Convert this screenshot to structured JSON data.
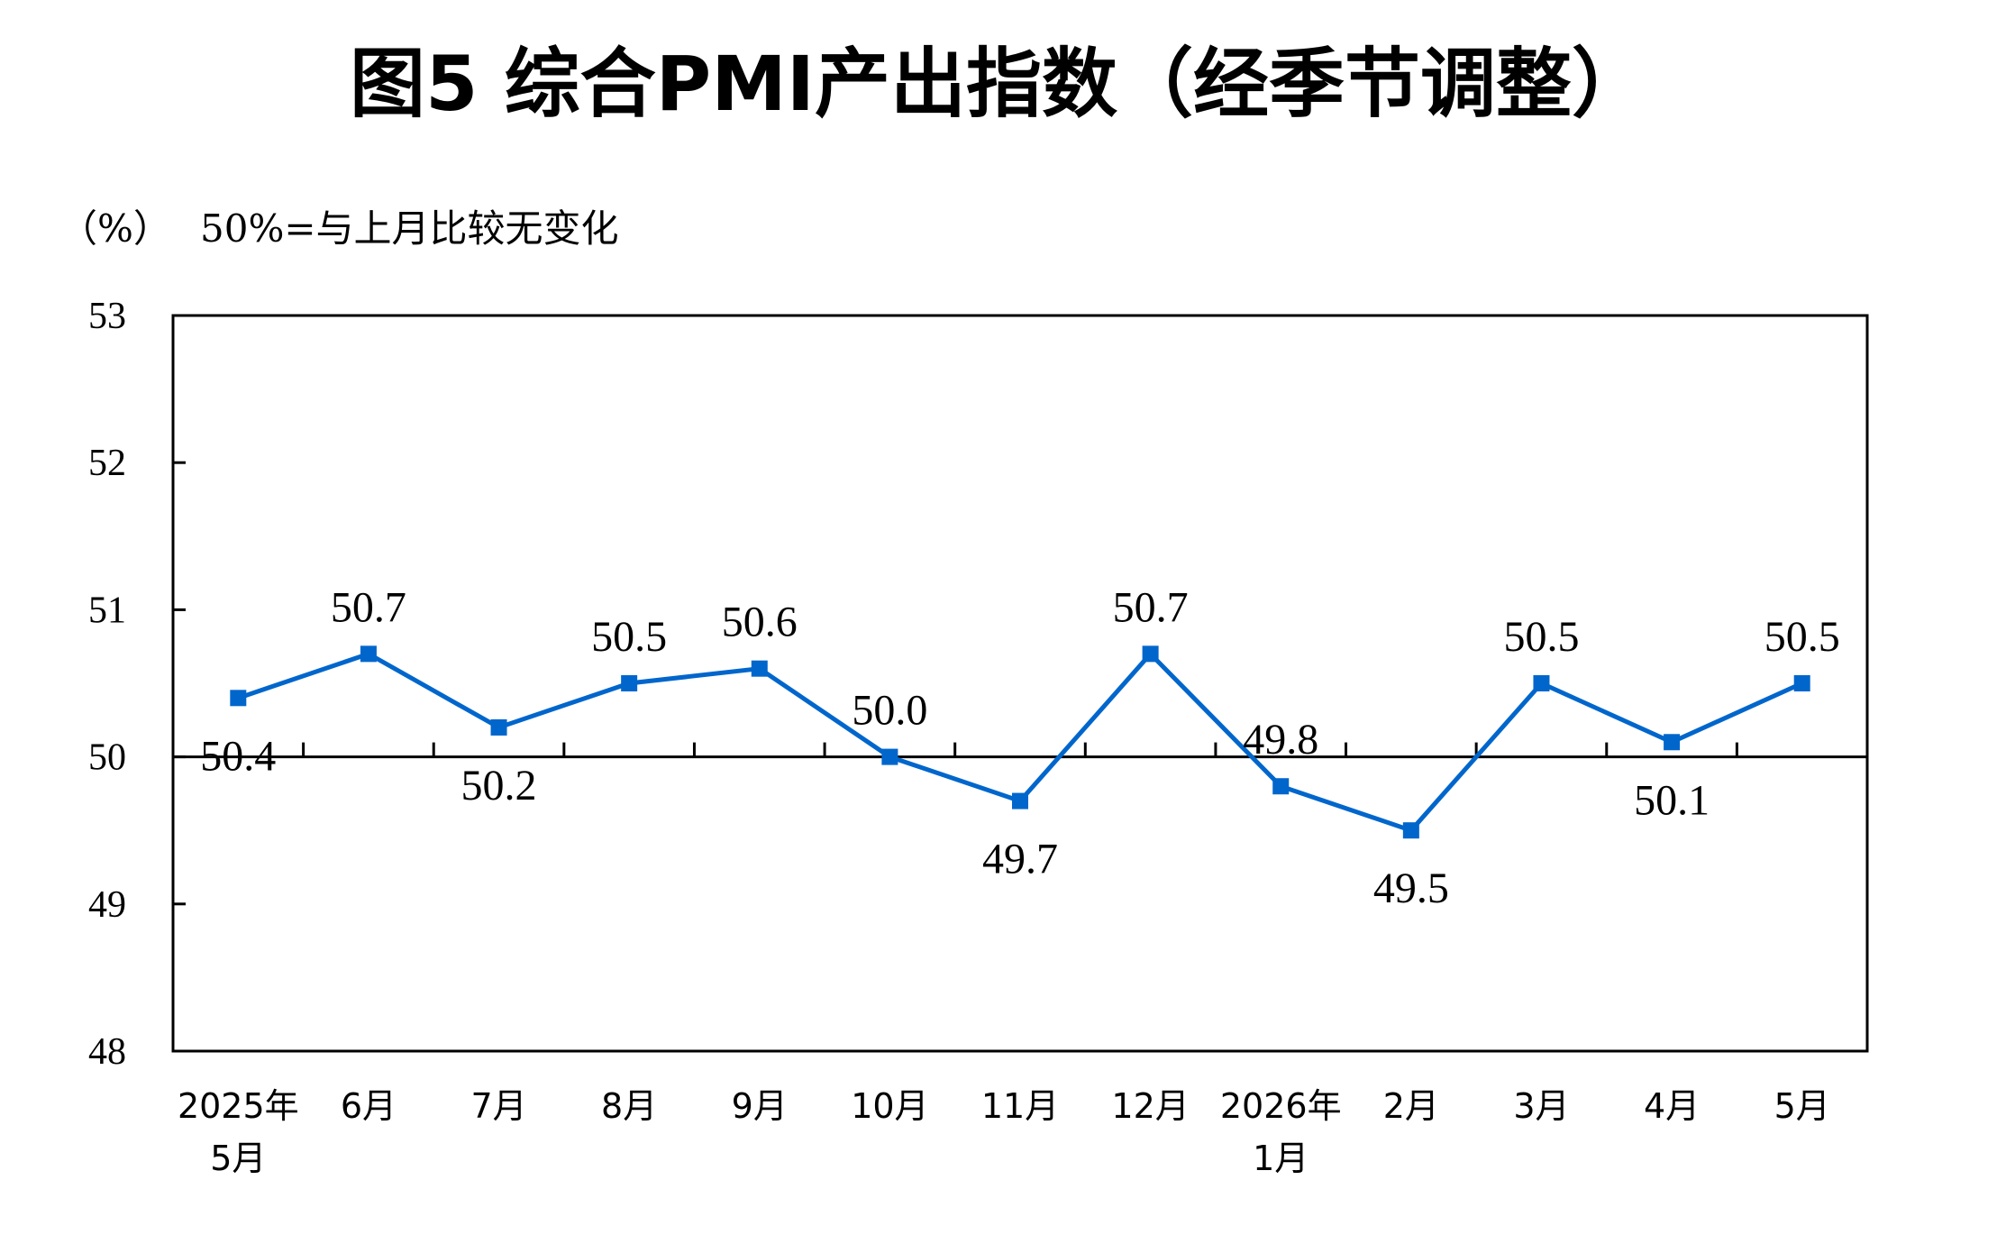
{
  "chart_data": {
    "type": "line",
    "title": "图5 综合PMI产出指数（经季节调整）",
    "unit_label": "（%）",
    "note": "50%=与上月比较无变化",
    "categories": [
      [
        "2025年",
        "5月"
      ],
      [
        "6月"
      ],
      [
        "7月"
      ],
      [
        "8月"
      ],
      [
        "9月"
      ],
      [
        "10月"
      ],
      [
        "11月"
      ],
      [
        "12月"
      ],
      [
        "2026年",
        "1月"
      ],
      [
        "2月"
      ],
      [
        "3月"
      ],
      [
        "4月"
      ],
      [
        "5月"
      ]
    ],
    "series": [
      {
        "values": [
          50.4,
          50.7,
          50.2,
          50.5,
          50.6,
          50.0,
          49.7,
          50.7,
          49.8,
          49.5,
          50.5,
          50.1,
          50.5
        ],
        "labels": [
          "50.4",
          "50.7",
          "50.2",
          "50.5",
          "50.6",
          "50.0",
          "49.7",
          "50.7",
          "49.8",
          "49.5",
          "50.5",
          "50.1",
          "50.5"
        ],
        "color": "#0066CC"
      }
    ],
    "ylim": [
      48,
      53
    ],
    "yticks": [
      "48",
      "49",
      "50",
      "51",
      "52",
      "53"
    ],
    "baseline": 50,
    "grid": false,
    "legend": "none"
  }
}
